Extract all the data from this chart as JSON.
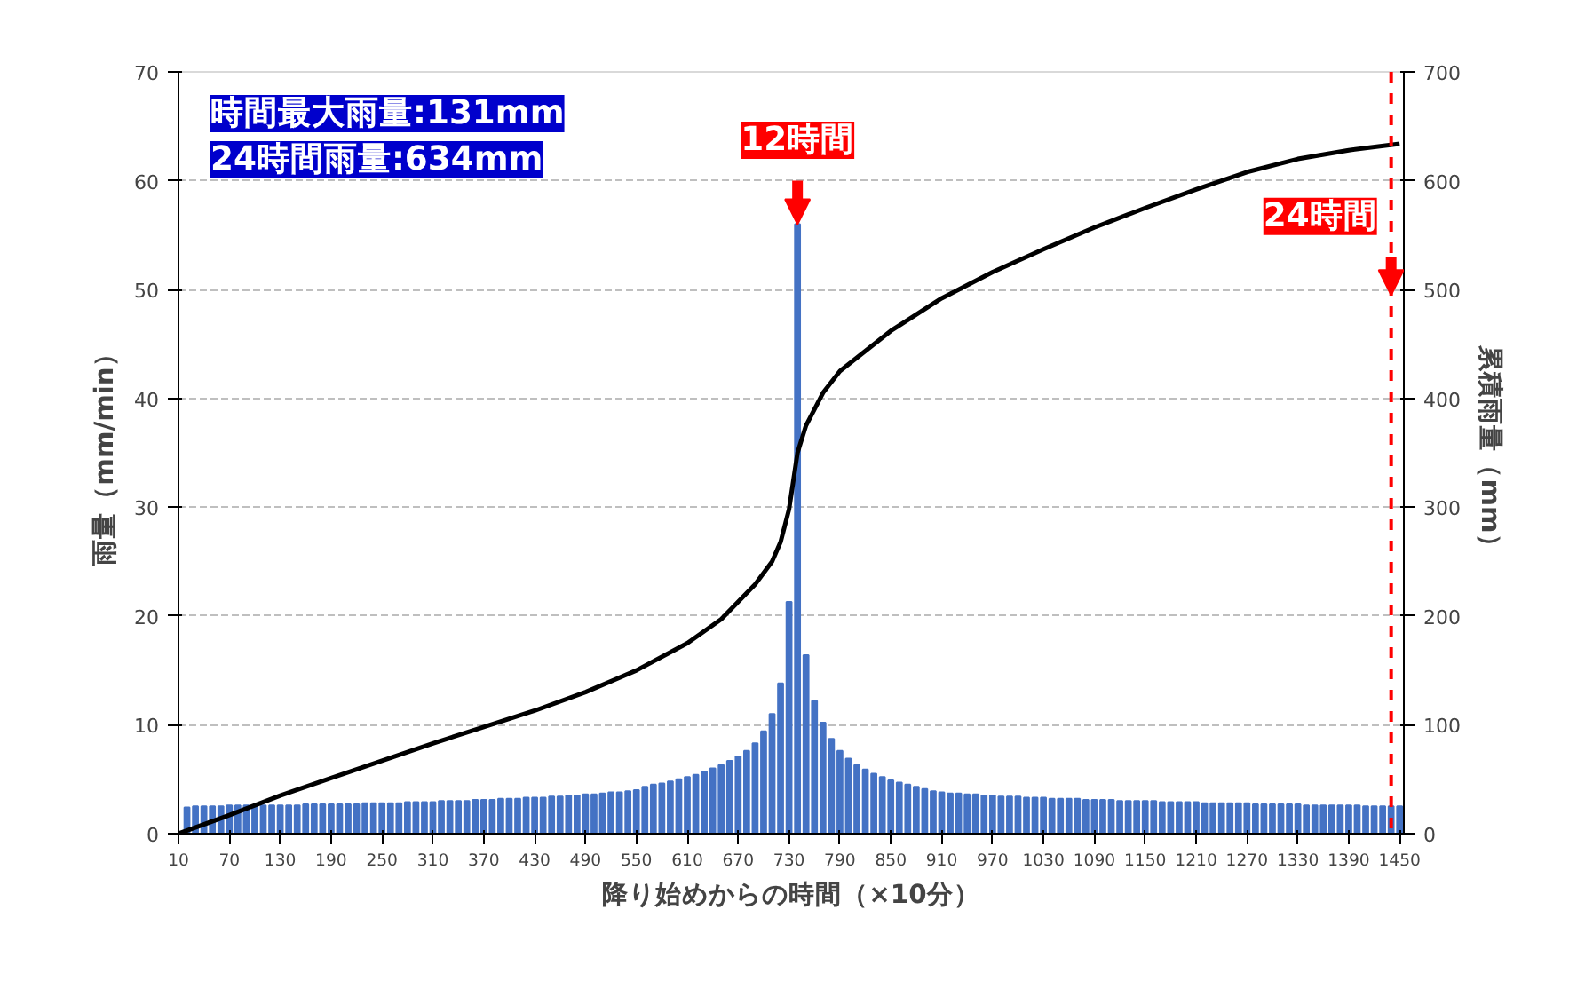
{
  "chart_data": {
    "type": "bar",
    "xlabel": "降り始めからの時間（×10分）",
    "ylabel": "雨量（mm/min）",
    "y2label": "累積雨量（mm）",
    "xlim": [
      10,
      1455
    ],
    "xticks": [
      10,
      70,
      130,
      190,
      250,
      310,
      370,
      430,
      490,
      550,
      610,
      670,
      730,
      790,
      850,
      910,
      970,
      1030,
      1090,
      1150,
      1210,
      1270,
      1330,
      1390,
      1450
    ],
    "ylim": [
      0,
      70
    ],
    "yticks": [
      0,
      10,
      20,
      30,
      40,
      50,
      60,
      70
    ],
    "y2lim": [
      0,
      700
    ],
    "y2ticks": [
      0,
      100,
      200,
      300,
      400,
      500,
      600,
      700
    ],
    "grid": "y",
    "series": [
      {
        "color": "#4472c4",
        "x": [
          20,
          30,
          40,
          50,
          60,
          70,
          80,
          90,
          100,
          110,
          120,
          130,
          140,
          150,
          160,
          170,
          180,
          190,
          200,
          210,
          220,
          230,
          240,
          250,
          260,
          270,
          280,
          290,
          300,
          310,
          320,
          330,
          340,
          350,
          360,
          370,
          380,
          390,
          400,
          410,
          420,
          430,
          440,
          450,
          460,
          470,
          480,
          490,
          500,
          510,
          520,
          530,
          540,
          550,
          560,
          570,
          580,
          590,
          600,
          610,
          620,
          630,
          640,
          650,
          660,
          670,
          680,
          690,
          700,
          710,
          720,
          730,
          740,
          750,
          760,
          770,
          780,
          790,
          800,
          810,
          820,
          830,
          840,
          850,
          860,
          870,
          880,
          890,
          900,
          910,
          920,
          930,
          940,
          950,
          960,
          970,
          980,
          990,
          1000,
          1010,
          1020,
          1030,
          1040,
          1050,
          1060,
          1070,
          1080,
          1090,
          1100,
          1110,
          1120,
          1130,
          1140,
          1150,
          1160,
          1170,
          1180,
          1190,
          1200,
          1210,
          1220,
          1230,
          1240,
          1250,
          1260,
          1270,
          1280,
          1290,
          1300,
          1310,
          1320,
          1330,
          1340,
          1350,
          1360,
          1370,
          1380,
          1390,
          1400,
          1410,
          1420,
          1430,
          1440,
          1450
        ],
        "values": [
          2.4,
          2.5,
          2.5,
          2.5,
          2.5,
          2.6,
          2.6,
          2.6,
          2.6,
          2.6,
          2.6,
          2.6,
          2.6,
          2.6,
          2.7,
          2.7,
          2.7,
          2.7,
          2.7,
          2.7,
          2.7,
          2.8,
          2.8,
          2.8,
          2.8,
          2.8,
          2.9,
          2.9,
          2.9,
          2.9,
          3.0,
          3.0,
          3.0,
          3.0,
          3.1,
          3.1,
          3.1,
          3.2,
          3.2,
          3.2,
          3.3,
          3.3,
          3.3,
          3.4,
          3.4,
          3.5,
          3.5,
          3.6,
          3.6,
          3.7,
          3.8,
          3.8,
          3.9,
          4.0,
          4.3,
          4.5,
          4.6,
          4.8,
          5.0,
          5.2,
          5.4,
          5.7,
          6.0,
          6.3,
          6.7,
          7.1,
          7.6,
          8.3,
          9.4,
          11.0,
          13.8,
          21.3,
          56,
          16.4,
          12.2,
          10.2,
          8.7,
          7.6,
          6.9,
          6.3,
          5.9,
          5.5,
          5.2,
          4.9,
          4.7,
          4.5,
          4.3,
          4.1,
          3.9,
          3.8,
          3.7,
          3.7,
          3.6,
          3.6,
          3.5,
          3.5,
          3.4,
          3.4,
          3.4,
          3.3,
          3.3,
          3.3,
          3.2,
          3.2,
          3.2,
          3.2,
          3.1,
          3.1,
          3.1,
          3.1,
          3.0,
          3.0,
          3.0,
          3.0,
          3.0,
          2.9,
          2.9,
          2.9,
          2.9,
          2.9,
          2.8,
          2.8,
          2.8,
          2.8,
          2.8,
          2.8,
          2.7,
          2.7,
          2.7,
          2.7,
          2.7,
          2.7,
          2.6,
          2.6,
          2.6,
          2.6,
          2.6,
          2.6,
          2.6,
          2.5,
          2.5,
          2.5,
          2.5,
          2.5
        ]
      },
      {
        "type": "line",
        "axis": "y2",
        "color": "#000000",
        "x": [
          10,
          70,
          130,
          190,
          250,
          310,
          370,
          430,
          490,
          550,
          610,
          650,
          690,
          710,
          720,
          730,
          740,
          750,
          770,
          790,
          850,
          910,
          970,
          1030,
          1090,
          1150,
          1210,
          1270,
          1330,
          1390,
          1450
        ],
        "values": [
          0,
          17,
          35,
          51,
          67,
          83,
          98,
          113,
          130,
          150,
          175,
          197,
          229,
          250,
          268,
          298,
          350,
          375,
          405,
          425,
          462,
          492,
          516,
          537,
          557,
          575,
          592,
          608,
          620,
          628,
          634
        ]
      }
    ],
    "ref_lines": [
      {
        "axis": "x",
        "value": 1440,
        "label": "24時間",
        "color": "#ff0000",
        "line_style": "dashed"
      }
    ],
    "annotations": [
      "時間最大雨量:131mm",
      "24時間雨量:634mm",
      {
        "text": "12時間",
        "x": 740,
        "y": 56
      }
    ]
  }
}
